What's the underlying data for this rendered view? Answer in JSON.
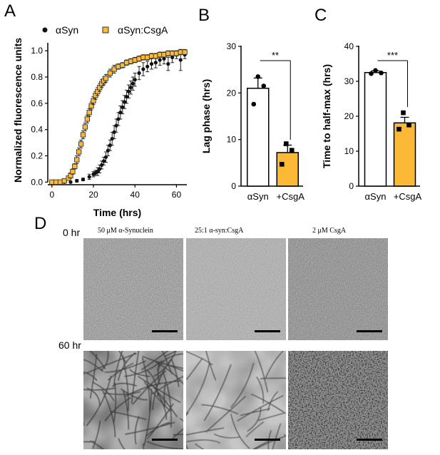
{
  "colors": {
    "asyn": "#111111",
    "csga": "#fbb936",
    "axis": "#000000"
  },
  "panels": [
    {
      "letter": "A"
    },
    {
      "letter": "B"
    },
    {
      "letter": "C"
    },
    {
      "letter": "D"
    }
  ],
  "chart_data": [
    {
      "panel": "A",
      "type": "scatter",
      "xlabel": "Time (hrs)",
      "ylabel": "Normalized fluorescence units",
      "xlim": [
        -2,
        65
      ],
      "ylim": [
        -0.02,
        1.05
      ],
      "xticks": [
        "0",
        "20",
        "40",
        "60"
      ],
      "yticks": [
        "0.0",
        "0.2",
        "0.4",
        "0.6",
        "0.8",
        "1.0"
      ],
      "legend_position": "top",
      "series": [
        {
          "name": "αSyn",
          "marker": "circle",
          "x": [
            0,
            3,
            6,
            9,
            12,
            15,
            18,
            20,
            21,
            22,
            23,
            24,
            25,
            26,
            27,
            28,
            29,
            30,
            31,
            32,
            33,
            34,
            35,
            36,
            37,
            38,
            39,
            40,
            42,
            44,
            46,
            48,
            50,
            52,
            54,
            56,
            58,
            60,
            62,
            64
          ],
          "y": [
            0.0,
            0.0,
            0.0,
            0.0,
            0.01,
            0.02,
            0.04,
            0.06,
            0.07,
            0.08,
            0.1,
            0.13,
            0.16,
            0.19,
            0.24,
            0.28,
            0.33,
            0.38,
            0.43,
            0.48,
            0.53,
            0.57,
            0.61,
            0.65,
            0.69,
            0.72,
            0.75,
            0.78,
            0.83,
            0.86,
            0.88,
            0.9,
            0.91,
            0.93,
            0.94,
            0.9,
            0.95,
            0.97,
            0.93,
            0.97
          ],
          "err": [
            0,
            0,
            0,
            0,
            0.01,
            0.01,
            0.02,
            0.02,
            0.02,
            0.03,
            0.03,
            0.03,
            0.03,
            0.04,
            0.04,
            0.04,
            0.05,
            0.05,
            0.05,
            0.05,
            0.05,
            0.05,
            0.05,
            0.05,
            0.05,
            0.05,
            0.05,
            0.05,
            0.05,
            0.05,
            0.04,
            0.04,
            0.04,
            0.04,
            0.04,
            0.05,
            0.04,
            0.03,
            0.08,
            0.03
          ]
        },
        {
          "name": "αSyn:CsgA",
          "marker": "square",
          "x": [
            0,
            2,
            4,
            6,
            8,
            9,
            10,
            11,
            12,
            13,
            14,
            15,
            16,
            17,
            18,
            19,
            20,
            21,
            22,
            23,
            24,
            25,
            26,
            28,
            30,
            32,
            34,
            36,
            38,
            40,
            42,
            44,
            46,
            48,
            50,
            52,
            54,
            56,
            58,
            60,
            62,
            64
          ],
          "y": [
            0.0,
            0.0,
            0.0,
            0.01,
            0.03,
            0.05,
            0.08,
            0.12,
            0.17,
            0.23,
            0.29,
            0.36,
            0.42,
            0.48,
            0.53,
            0.58,
            0.62,
            0.66,
            0.69,
            0.72,
            0.75,
            0.77,
            0.79,
            0.83,
            0.86,
            0.88,
            0.89,
            0.91,
            0.92,
            0.93,
            0.94,
            0.95,
            0.95,
            0.96,
            0.96,
            0.97,
            0.97,
            0.98,
            0.98,
            0.98,
            0.99,
            0.99
          ],
          "err": [
            0,
            0,
            0,
            0.01,
            0.01,
            0.02,
            0.02,
            0.02,
            0.03,
            0.03,
            0.03,
            0.03,
            0.03,
            0.03,
            0.03,
            0.03,
            0.03,
            0.03,
            0.03,
            0.03,
            0.03,
            0.03,
            0.03,
            0.03,
            0.03,
            0.02,
            0.02,
            0.02,
            0.02,
            0.02,
            0.02,
            0.02,
            0.02,
            0.02,
            0.02,
            0.02,
            0.02,
            0.02,
            0.02,
            0.02,
            0.02,
            0.02
          ]
        }
      ]
    },
    {
      "panel": "B",
      "type": "bar",
      "xlabel": "",
      "ylabel": "Lag phase (hrs)",
      "ylim": [
        0,
        30
      ],
      "yticks": [
        "0",
        "10",
        "20",
        "30"
      ],
      "categories": [
        "αSyn",
        "+CsgA"
      ],
      "values": [
        21.0,
        7.2
      ],
      "sem": [
        2.2,
        1.6
      ],
      "points": [
        [
          23.5,
          21.5,
          17.6
        ],
        [
          9.1,
          7.7,
          4.7
        ]
      ],
      "significance": "**"
    },
    {
      "panel": "C",
      "type": "bar",
      "xlabel": "",
      "ylabel": "Time to half-max (hrs)",
      "ylim": [
        0,
        40
      ],
      "yticks": [
        "0",
        "10",
        "20",
        "30",
        "40"
      ],
      "categories": [
        "αSyn",
        "+CsgA"
      ],
      "values": [
        32.5,
        18.1
      ],
      "sem": [
        0.5,
        1.6
      ],
      "points": [
        [
          33.1,
          32.4,
          32.2
        ],
        [
          21.0,
          17.5,
          16.3
        ]
      ],
      "significance": "***"
    }
  ],
  "micrographs": {
    "row_labels": [
      "0 hr",
      "60 hr"
    ],
    "column_labels": [
      "50 μM α-Synuclein",
      "25:1 α-syn:CsgA",
      "2 μM CsgA"
    ]
  }
}
